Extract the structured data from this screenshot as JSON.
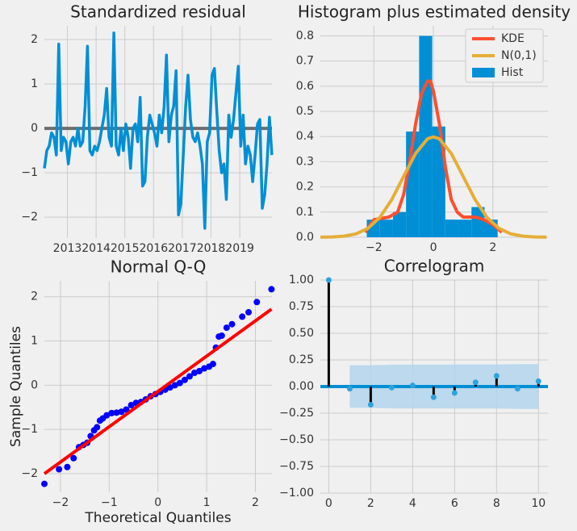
{
  "chart_data": [
    {
      "type": "line",
      "title": "Standardized residual",
      "color": "#008fd5",
      "x": [
        2012.2,
        2012.283,
        2012.367,
        2012.45,
        2012.533,
        2012.617,
        2012.7,
        2012.783,
        2012.867,
        2012.95,
        2013.033,
        2013.117,
        2013.2,
        2013.283,
        2013.367,
        2013.45,
        2013.533,
        2013.617,
        2013.7,
        2013.783,
        2013.867,
        2013.95,
        2014.033,
        2014.117,
        2014.2,
        2014.283,
        2014.367,
        2014.45,
        2014.533,
        2014.617,
        2014.7,
        2014.783,
        2014.867,
        2014.95,
        2015.033,
        2015.117,
        2015.2,
        2015.283,
        2015.367,
        2015.45,
        2015.533,
        2015.617,
        2015.7,
        2015.783,
        2015.867,
        2015.95,
        2016.033,
        2016.117,
        2016.2,
        2016.283,
        2016.367,
        2016.45,
        2016.533,
        2016.617,
        2016.7,
        2016.783,
        2016.867,
        2016.95,
        2017.033,
        2017.117,
        2017.2,
        2017.283,
        2017.367,
        2017.45,
        2017.533,
        2017.617,
        2017.7,
        2017.783,
        2017.867,
        2017.95,
        2018.033,
        2018.117,
        2018.2,
        2018.283,
        2018.367,
        2018.45,
        2018.533,
        2018.617,
        2018.7,
        2018.783,
        2018.867,
        2018.95,
        2019.033,
        2019.117,
        2019.2,
        2019.283,
        2019.367,
        2019.45,
        2019.533,
        2019.617,
        2019.7,
        2019.783,
        2019.867,
        2019.95,
        2020.033,
        2020.117
      ],
      "values": [
        -0.9,
        -0.5,
        -0.4,
        -0.1,
        -0.2,
        -0.6,
        1.9,
        -0.5,
        -0.2,
        -0.3,
        -0.8,
        -0.3,
        -0.2,
        -0.4,
        0,
        -0.4,
        -0.3,
        0.5,
        1.85,
        -0.5,
        -0.6,
        -0.4,
        -0.5,
        -0.3,
        0,
        0.3,
        0.9,
        -0.2,
        -0.4,
        2.15,
        -0.4,
        -0.6,
        0,
        -0.5,
        0.1,
        -0.2,
        -0.9,
        0,
        0.1,
        -0.3,
        0.7,
        -1.3,
        -1.2,
        -0.2,
        0.3,
        0.1,
        -0.1,
        -0.4,
        0.3,
        -0.1,
        0.5,
        1.65,
        -0.3,
        0.3,
        0.5,
        1.3,
        -1.95,
        -1.7,
        -0.6,
        0.5,
        1.2,
        0.2,
        -0.2,
        -0.3,
        -0.1,
        -0.4,
        -0.8,
        -2.25,
        -0.3,
        -0.1,
        1.2,
        1.35,
        0.4,
        -0.5,
        -1,
        -0.8,
        -1.6,
        0.3,
        -0.2,
        0.2,
        0.8,
        1.4,
        -0.4,
        0.3,
        -0.8,
        -0.4,
        -0.6,
        -1.2,
        -0.6,
        0.1,
        0.2,
        -1.8,
        -1.5,
        -0.8,
        0.25,
        -0.6
      ],
      "reference_line": 0,
      "reference_color": "#6d6d6d",
      "xlim": [
        2012.2,
        2020.12
      ],
      "ylim": [
        -2.47,
        2.31
      ],
      "xticks": [
        2013,
        2014,
        2015,
        2016,
        2017,
        2018,
        2019
      ],
      "yticks": [
        {
          "value": -2,
          "label": "−2"
        },
        {
          "value": -1,
          "label": "−1"
        },
        0,
        1,
        2
      ],
      "grid": true
    },
    {
      "type": "histogram",
      "title": "Histogram plus estimated density",
      "legend": "upper right",
      "hist": {
        "name": "Hist",
        "color": "#008fd5",
        "bins": [
          -2.24,
          -1.8,
          -1.36,
          -0.92,
          -0.48,
          -0.04,
          0.4,
          0.84,
          1.28,
          1.72,
          2.16
        ],
        "values": [
          0.07,
          0.07,
          0.1,
          0.42,
          0.8,
          0.44,
          0.07,
          0.07,
          0.12,
          0.07
        ]
      },
      "series": [
        {
          "name": "KDE",
          "color": "#fc4f30",
          "x": [
            -2.3,
            -2.0,
            -1.5,
            -1.2,
            -1.0,
            -0.8,
            -0.6,
            -0.4,
            -0.2,
            -0.1,
            0,
            0.2,
            0.4,
            0.6,
            0.8,
            1.0,
            1.4,
            1.7,
            2.0,
            2.3
          ],
          "values": [
            0.02,
            0.07,
            0.08,
            0.1,
            0.17,
            0.3,
            0.45,
            0.57,
            0.62,
            0.62,
            0.58,
            0.45,
            0.28,
            0.15,
            0.1,
            0.08,
            0.08,
            0.07,
            0.05,
            0.02
          ]
        },
        {
          "name": "N(0,1)",
          "color": "#e5ae38",
          "x": [
            -3.8,
            -3.4,
            -3,
            -2.6,
            -2.2,
            -1.8,
            -1.4,
            -1,
            -0.6,
            -0.2,
            0,
            0.2,
            0.6,
            1,
            1.4,
            1.8,
            2.2,
            2.6,
            3,
            3.4,
            3.8
          ],
          "values": [
            0.0003,
            0.0012,
            0.0044,
            0.0136,
            0.0355,
            0.079,
            0.1497,
            0.242,
            0.3332,
            0.391,
            0.3989,
            0.391,
            0.3332,
            0.242,
            0.1497,
            0.079,
            0.0355,
            0.0136,
            0.0044,
            0.0012,
            0.0003
          ]
        }
      ],
      "xlim": [
        -3.8,
        3.85
      ],
      "ylim": [
        0,
        0.84
      ],
      "xticks": [
        {
          "value": -2,
          "label": "−2"
        },
        0,
        2
      ],
      "yticks": [
        {
          "value": 0,
          "label": "0.0"
        },
        0.1,
        0.2,
        0.3,
        0.4,
        0.5,
        0.6,
        0.7,
        0.8
      ],
      "grid": true
    },
    {
      "type": "scatter",
      "title": "Normal Q-Q",
      "xlabel": "Theoretical Quantiles",
      "ylabel": "Sample Quantiles",
      "color": "#0000ff",
      "x": [
        -2.33,
        -2.03,
        -1.86,
        -1.73,
        -1.62,
        -1.53,
        -1.45,
        -1.38,
        -1.31,
        -1.25,
        -1.19,
        -1.13,
        -1.05,
        -0.95,
        -0.85,
        -0.75,
        -0.65,
        -0.55,
        -0.45,
        -0.35,
        -0.25,
        -0.15,
        -0.05,
        0.05,
        0.15,
        0.25,
        0.35,
        0.45,
        0.55,
        0.65,
        0.75,
        0.85,
        0.95,
        1.05,
        1.13,
        1.19,
        1.25,
        1.31,
        1.41,
        1.52,
        1.73,
        1.86,
        2.03,
        2.33
      ],
      "values": [
        -2.23,
        -1.9,
        -1.85,
        -1.65,
        -1.4,
        -1.35,
        -1.3,
        -1.15,
        -1.02,
        -0.95,
        -0.8,
        -0.75,
        -0.68,
        -0.63,
        -0.62,
        -0.6,
        -0.55,
        -0.45,
        -0.4,
        -0.38,
        -0.32,
        -0.25,
        -0.2,
        -0.15,
        -0.1,
        -0.05,
        0,
        0.05,
        0.12,
        0.2,
        0.28,
        0.32,
        0.38,
        0.42,
        0.48,
        0.85,
        1.1,
        1.12,
        1.3,
        1.38,
        1.55,
        1.65,
        1.88,
        2.17
      ],
      "fit_line": {
        "color": "#ff0000",
        "x": [
          -2.33,
          2.33
        ],
        "values": [
          -2.0,
          1.72
        ]
      },
      "xlim": [
        -2.33,
        2.34
      ],
      "ylim": [
        -2.42,
        2.36
      ],
      "xticks": [
        {
          "value": -2,
          "label": "−2"
        },
        {
          "value": -1,
          "label": "−1"
        },
        0,
        1,
        2
      ],
      "yticks": [
        {
          "value": -2,
          "label": "−2"
        },
        {
          "value": -1,
          "label": "−1"
        },
        0,
        1,
        2
      ],
      "grid": true
    },
    {
      "type": "stem",
      "title": "Correlogram",
      "color": "#30a2da",
      "stem_color": "#000000",
      "x": [
        0,
        1,
        2,
        3,
        4,
        5,
        6,
        7,
        8,
        9,
        10
      ],
      "values": [
        1.0,
        -0.02,
        -0.17,
        -0.01,
        0.01,
        -0.1,
        -0.06,
        0.04,
        0.1,
        -0.02,
        0.05
      ],
      "confidence": [
        null,
        0.2,
        0.2,
        0.205,
        0.205,
        0.205,
        0.207,
        0.207,
        0.207,
        0.21,
        0.21
      ],
      "band_color": "#b3d5ec",
      "reference_line": 0,
      "reference_color": "#008fd5",
      "xlim": [
        -0.4,
        10.45
      ],
      "ylim": [
        -1,
        1
      ],
      "xticks": [
        0,
        2,
        4,
        6,
        8,
        10
      ],
      "yticks": [
        {
          "value": -1,
          "label": "−1.00"
        },
        {
          "value": -0.75,
          "label": "−0.75"
        },
        {
          "value": -0.5,
          "label": "−0.50"
        },
        {
          "value": -0.25,
          "label": "−0.25"
        },
        {
          "value": 0,
          "label": "0.00"
        },
        0.25,
        {
          "value": 0.5,
          "label": "0.50"
        },
        0.75,
        {
          "value": 1,
          "label": "1.00"
        }
      ],
      "grid": true
    }
  ]
}
